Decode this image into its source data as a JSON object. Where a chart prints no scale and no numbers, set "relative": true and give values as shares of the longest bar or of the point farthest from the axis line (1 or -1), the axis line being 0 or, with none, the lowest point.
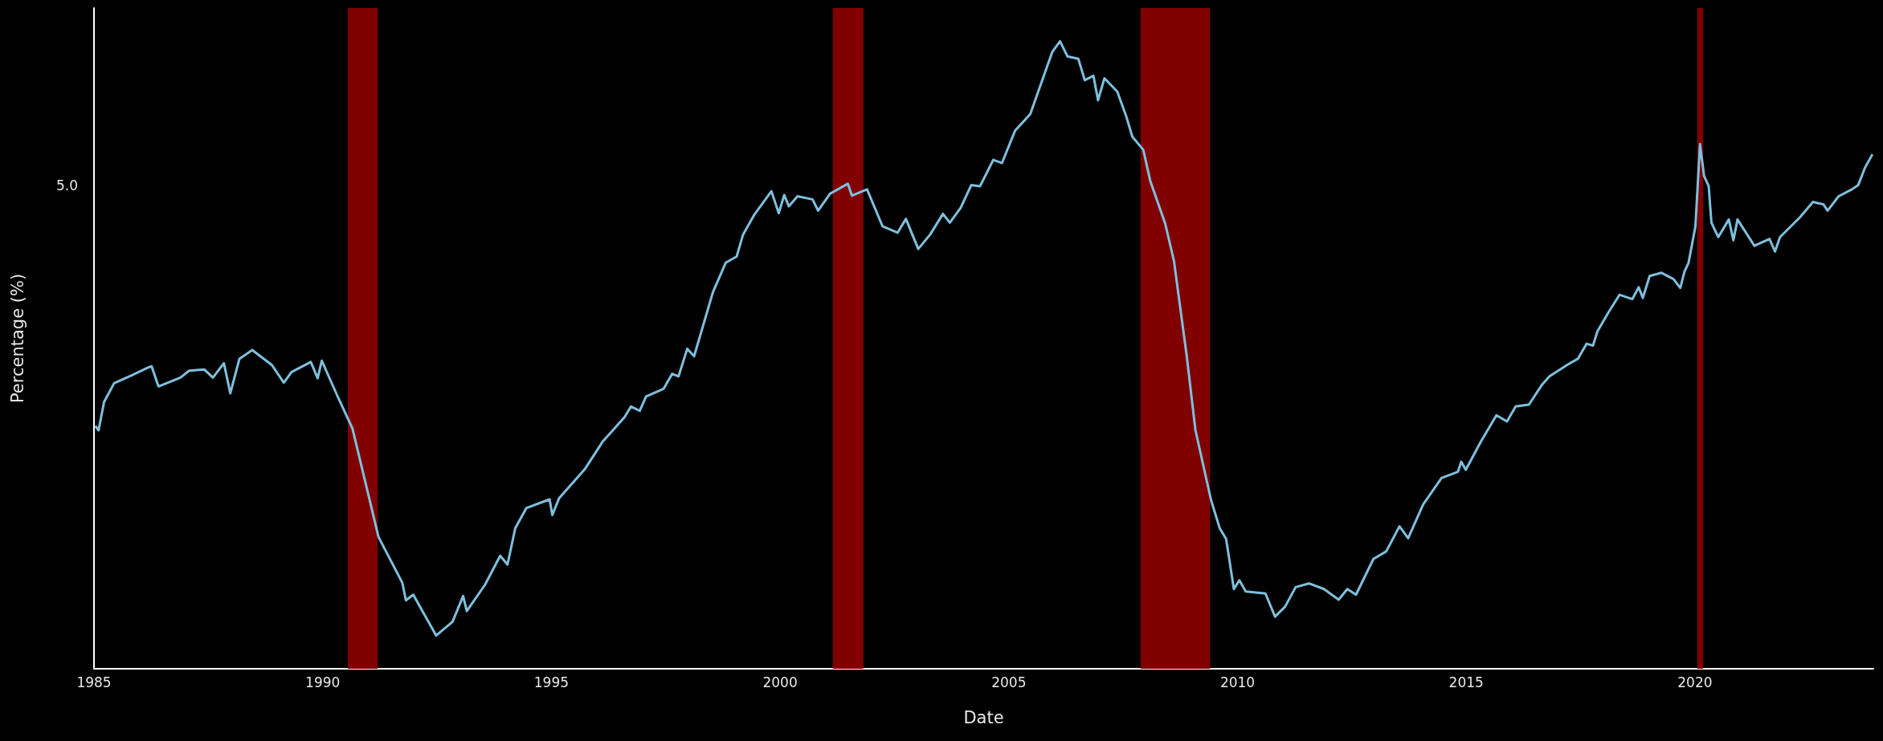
{
  "chart_data": {
    "type": "line",
    "relative": true,
    "xlabel": "Date",
    "ylabel": "Percentage (%)",
    "xlim": [
      1985,
      2023.9
    ],
    "xticks": [
      1985,
      1990,
      1995,
      2000,
      2005,
      2010,
      2015,
      2020
    ],
    "grid": false,
    "marker": "none",
    "line_style": "solid",
    "annotations": [
      "5.0"
    ],
    "bands": [
      {
        "axis": "x",
        "from": 1990.55,
        "to": 1991.2,
        "color": "#800000"
      },
      {
        "axis": "x",
        "from": 2001.15,
        "to": 2001.82,
        "color": "#800000"
      },
      {
        "axis": "x",
        "from": 2007.88,
        "to": 2009.4,
        "color": "#800000"
      },
      {
        "axis": "x",
        "from": 2020.05,
        "to": 2020.18,
        "color": "#800000"
      }
    ],
    "series": [
      {
        "color": "#7ec0de",
        "x": [
          1985.03,
          1985.1,
          1985.22,
          1985.44,
          1985.84,
          1986.18,
          1986.26,
          1986.41,
          1986.89,
          1987.08,
          1987.41,
          1987.6,
          1987.84,
          1987.98,
          1988.18,
          1988.46,
          1988.89,
          1989.15,
          1989.32,
          1989.74,
          1989.89,
          1989.98,
          1990.32,
          1990.65,
          1990.98,
          1991.22,
          1991.74,
          1991.82,
          1991.98,
          1992.31,
          1992.48,
          1992.84,
          1993.07,
          1993.15,
          1993.55,
          1993.88,
          1994.04,
          1994.21,
          1994.45,
          1994.96,
          1995.02,
          1995.17,
          1995.74,
          1996.12,
          1996.6,
          1996.74,
          1996.93,
          1997.07,
          1997.45,
          1997.64,
          1997.78,
          1997.97,
          1998.12,
          1998.53,
          1998.81,
          1999.05,
          1999.19,
          1999.43,
          1999.81,
          1999.97,
          2000.09,
          2000.19,
          2000.38,
          2000.71,
          2000.83,
          2001.09,
          2001.48,
          2001.57,
          2001.9,
          2002.24,
          2002.57,
          2002.75,
          2003.02,
          2003.28,
          2003.56,
          2003.71,
          2003.95,
          2004.18,
          2004.37,
          2004.66,
          2004.85,
          2005.14,
          2005.47,
          2005.75,
          2005.95,
          2006.12,
          2006.28,
          2006.52,
          2006.66,
          2006.85,
          2006.95,
          2007.09,
          2007.37,
          2007.56,
          2007.7,
          2007.94,
          2008.09,
          2008.42,
          2008.61,
          2008.89,
          2009.08,
          2009.42,
          2009.61,
          2009.75,
          2009.92,
          2010.04,
          2010.18,
          2010.61,
          2010.82,
          2011.04,
          2011.27,
          2011.56,
          2011.89,
          2012.21,
          2012.4,
          2012.59,
          2012.97,
          2013.25,
          2013.54,
          2013.73,
          2014.06,
          2014.46,
          2014.82,
          2014.89,
          2014.99,
          2015.32,
          2015.66,
          2015.89,
          2016.08,
          2016.37,
          2016.66,
          2016.82,
          2017.2,
          2017.44,
          2017.63,
          2017.77,
          2017.87,
          2018.11,
          2018.35,
          2018.63,
          2018.77,
          2018.86,
          2019.01,
          2019.27,
          2019.53,
          2019.68,
          2019.77,
          2019.86,
          2020.01,
          2020.11,
          2020.2,
          2020.3,
          2020.36,
          2020.51,
          2020.74,
          2020.84,
          2020.93,
          2021.3,
          2021.63,
          2021.75,
          2021.86,
          2022.29,
          2022.58,
          2022.81,
          2022.9,
          2023.14,
          2023.43,
          2023.57,
          2023.72,
          2023.88
        ],
        "values": [
          0.387,
          0.38,
          0.425,
          0.455,
          0.468,
          0.48,
          0.482,
          0.45,
          0.464,
          0.475,
          0.477,
          0.464,
          0.487,
          0.439,
          0.494,
          0.508,
          0.484,
          0.456,
          0.473,
          0.489,
          0.463,
          0.491,
          0.435,
          0.383,
          0.283,
          0.21,
          0.137,
          0.109,
          0.118,
          0.075,
          0.053,
          0.075,
          0.116,
          0.092,
          0.134,
          0.18,
          0.166,
          0.224,
          0.256,
          0.27,
          0.245,
          0.272,
          0.319,
          0.362,
          0.401,
          0.418,
          0.411,
          0.434,
          0.446,
          0.47,
          0.466,
          0.51,
          0.498,
          0.6,
          0.647,
          0.657,
          0.692,
          0.723,
          0.761,
          0.726,
          0.755,
          0.737,
          0.753,
          0.748,
          0.73,
          0.757,
          0.773,
          0.754,
          0.764,
          0.705,
          0.695,
          0.717,
          0.669,
          0.692,
          0.725,
          0.711,
          0.735,
          0.771,
          0.769,
          0.811,
          0.806,
          0.858,
          0.884,
          0.942,
          0.983,
          1,
          0.976,
          0.972,
          0.938,
          0.945,
          0.906,
          0.941,
          0.92,
          0.882,
          0.848,
          0.827,
          0.778,
          0.709,
          0.65,
          0.498,
          0.38,
          0.269,
          0.224,
          0.207,
          0.127,
          0.141,
          0.123,
          0.12,
          0.083,
          0.099,
          0.13,
          0.136,
          0.127,
          0.11,
          0.127,
          0.118,
          0.175,
          0.187,
          0.227,
          0.208,
          0.262,
          0.304,
          0.314,
          0.33,
          0.317,
          0.362,
          0.404,
          0.394,
          0.418,
          0.421,
          0.453,
          0.466,
          0.484,
          0.494,
          0.518,
          0.515,
          0.538,
          0.568,
          0.596,
          0.589,
          0.608,
          0.591,
          0.626,
          0.631,
          0.621,
          0.607,
          0.633,
          0.647,
          0.705,
          0.836,
          0.785,
          0.769,
          0.711,
          0.688,
          0.716,
          0.683,
          0.716,
          0.674,
          0.685,
          0.665,
          0.688,
          0.719,
          0.744,
          0.74,
          0.73,
          0.753,
          0.764,
          0.771,
          0.799,
          0.82
        ]
      }
    ]
  }
}
